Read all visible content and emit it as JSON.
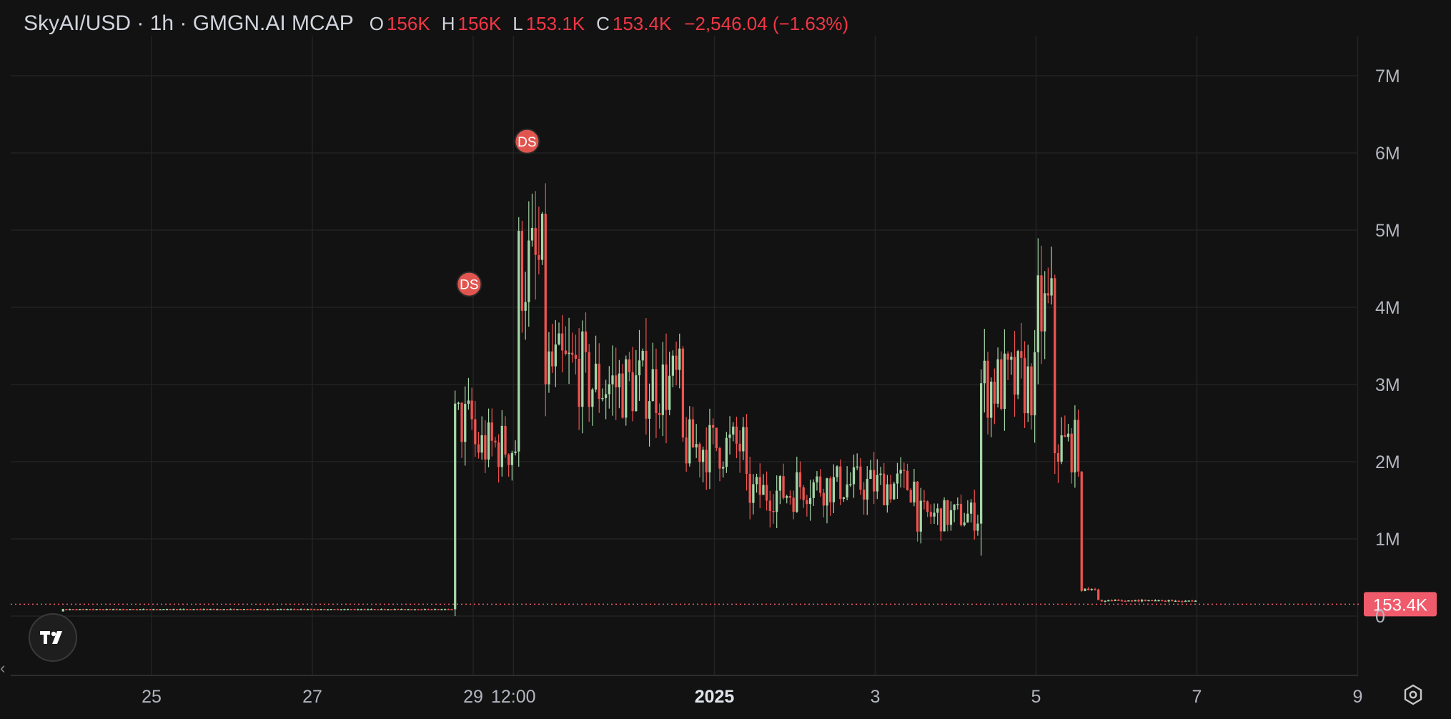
{
  "header": {
    "symbol": "SkyAI/USD · 1h · GMGN.AI MCAP",
    "open_key": "O",
    "open_value": "156K",
    "high_key": "H",
    "high_value": "156K",
    "low_key": "L",
    "low_value": "153.1K",
    "close_key": "C",
    "close_value": "153.4K",
    "change": "−2,546.04 (−1.63%)"
  },
  "colors": {
    "background": "#121212",
    "up": "#a5d6a7",
    "down": "#ef5350",
    "grid": "#232323",
    "axis_text": "#b2b5be",
    "price_label_bg": "#f05b6b",
    "marker_bg": "#e0564f"
  },
  "chart_data": {
    "type": "candlestick",
    "interval": "1h",
    "y_axis": {
      "range": [
        -750000,
        7500000
      ],
      "ticks": [
        0,
        1000000,
        2000000,
        3000000,
        4000000,
        5000000,
        6000000,
        7000000
      ],
      "tick_labels": [
        "0",
        "1M",
        "2M",
        "3M",
        "4M",
        "5M",
        "6M",
        "7M"
      ],
      "position": "right"
    },
    "x_axis": {
      "ticks": [
        {
          "label": "25",
          "day": 25
        },
        {
          "label": "27",
          "day": 27
        },
        {
          "label": "29",
          "day": 29
        },
        {
          "label": "12:00",
          "day": 29.5
        },
        {
          "label": "2025",
          "day": 32,
          "bold": true
        },
        {
          "label": "3",
          "day": 34
        },
        {
          "label": "5",
          "day": 36
        },
        {
          "label": "7",
          "day": 38
        },
        {
          "label": "9",
          "day": 40
        }
      ]
    },
    "current_price": {
      "value": 153400,
      "label": "153.4K"
    },
    "markers": [
      {
        "label": "DS",
        "day": 28.95,
        "value": 4300000
      },
      {
        "label": "DS",
        "day": 29.67,
        "value": 6150000
      }
    ],
    "segments": [
      {
        "start_day": 23.9,
        "end_day": 28.75,
        "level": 0
      },
      {
        "start_day": 28.75,
        "end_day": 29.0,
        "level": 2500000
      },
      {
        "start_day": 29.0,
        "end_day": 29.55,
        "level": 2200000
      },
      {
        "start_day": 29.55,
        "end_day": 29.9,
        "level": 4500000
      },
      {
        "start_day": 29.9,
        "end_day": 30.4,
        "level": 3200000
      },
      {
        "start_day": 30.4,
        "end_day": 31.6,
        "level": 3000000
      },
      {
        "start_day": 31.6,
        "end_day": 32.4,
        "level": 2200000
      },
      {
        "start_day": 32.4,
        "end_day": 33.0,
        "level": 1600000
      },
      {
        "start_day": 33.0,
        "end_day": 34.5,
        "level": 1700000
      },
      {
        "start_day": 34.5,
        "end_day": 35.3,
        "level": 1300000
      },
      {
        "start_day": 35.3,
        "end_day": 36.0,
        "level": 3000000
      },
      {
        "start_day": 36.0,
        "end_day": 36.2,
        "level": 3900000
      },
      {
        "start_day": 36.2,
        "end_day": 36.55,
        "level": 2200000
      },
      {
        "start_day": 36.55,
        "end_day": 36.75,
        "level": 300000
      },
      {
        "start_day": 36.75,
        "end_day": 38.0,
        "level": 160000
      }
    ]
  },
  "icons": {
    "logo": "tradingview-logo-icon",
    "settings": "settings-hexagon-icon",
    "scroll": "chevron-left-icon"
  }
}
